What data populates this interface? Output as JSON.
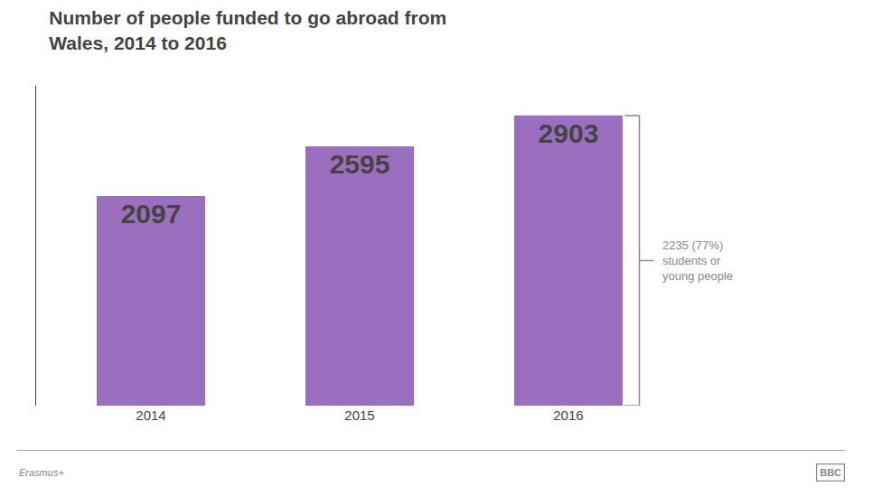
{
  "chart_data": {
    "type": "bar",
    "title": "Number of people funded to go abroad from\nWales, 2014 to 2016",
    "categories": [
      "2014",
      "2015",
      "2016"
    ],
    "values": [
      2097,
      2595,
      2903
    ],
    "color": "#9b6fbf",
    "ylim": [
      0,
      3200
    ],
    "grid": false,
    "data_labels": true,
    "tick_labels": "x",
    "annotations": [
      {
        "text": "2235 (77%)\nstudents or\nyoung people",
        "category": "2016"
      }
    ],
    "source": "Erasmus+",
    "credit": "BBC"
  }
}
